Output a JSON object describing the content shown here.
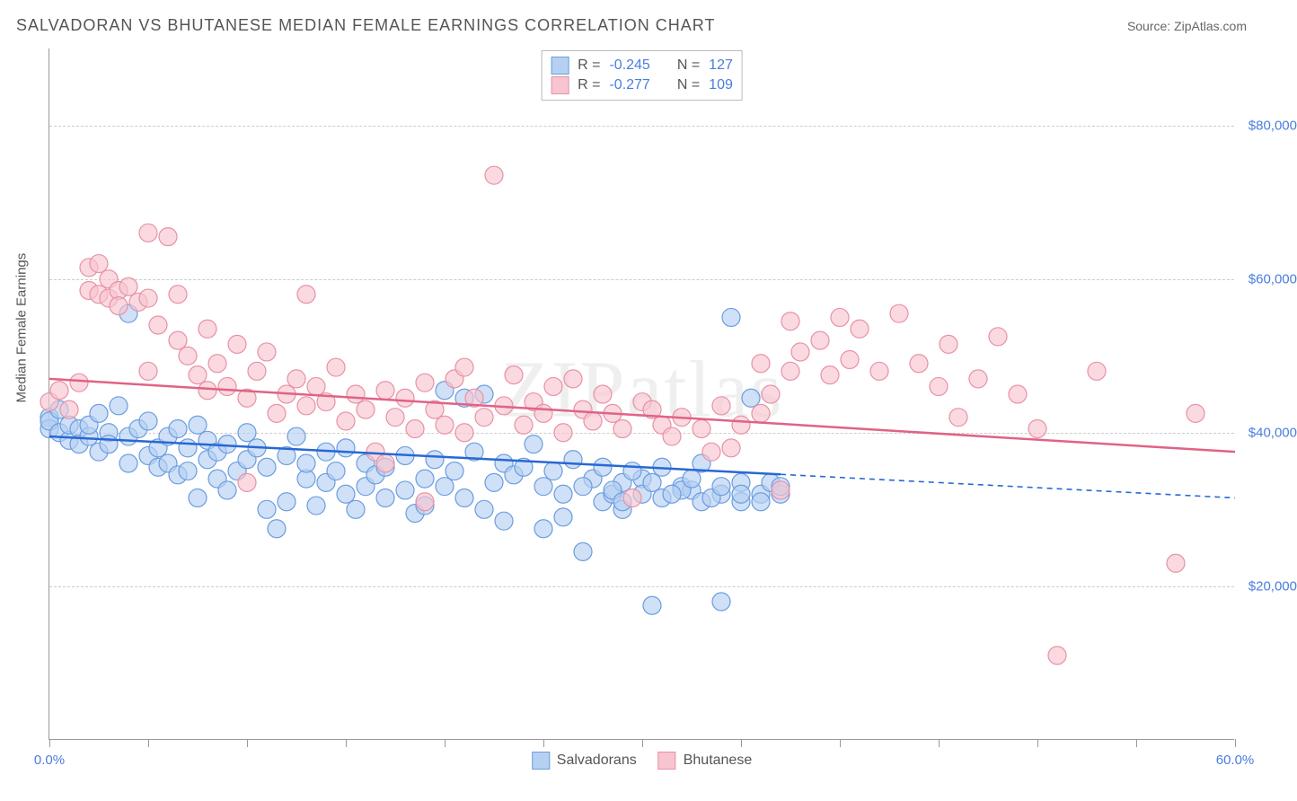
{
  "title": "SALVADORAN VS BHUTANESE MEDIAN FEMALE EARNINGS CORRELATION CHART",
  "source_label": "Source: ZipAtlas.com",
  "watermark": "ZIPatlas",
  "y_axis_title": "Median Female Earnings",
  "chart": {
    "type": "scatter",
    "background_color": "#ffffff",
    "grid_color": "#cccccc",
    "axis_color": "#999999",
    "xlim": [
      0,
      60
    ],
    "ylim": [
      0,
      90000
    ],
    "x_ticks_minor": [
      0,
      5,
      10,
      15,
      20,
      25,
      30,
      35,
      40,
      45,
      50,
      55,
      60
    ],
    "x_tick_labels": [
      {
        "pos": 0,
        "label": "0.0%"
      },
      {
        "pos": 60,
        "label": "60.0%"
      }
    ],
    "y_gridlines": [
      20000,
      40000,
      60000,
      80000
    ],
    "y_tick_labels": [
      "$20,000",
      "$40,000",
      "$60,000",
      "$80,000"
    ],
    "tick_label_color": "#4a7de0",
    "series": [
      {
        "name": "Salvadorans",
        "marker_fill": "#b6d0f2",
        "marker_stroke": "#6a9de0",
        "marker_opacity": 0.65,
        "marker_radius": 10,
        "trend_color": "#2868d4",
        "trend_line_width": 2.5,
        "trend_y_start": 39500,
        "trend_y_end": 31500,
        "trend_solid_until_x": 37,
        "stats": {
          "R": "-0.245",
          "N": "127"
        },
        "points": [
          [
            0,
            42000
          ],
          [
            0,
            40500
          ],
          [
            0,
            41500
          ],
          [
            0.5,
            40000
          ],
          [
            0.5,
            43000
          ],
          [
            1,
            39000
          ],
          [
            1,
            41000
          ],
          [
            1.5,
            40500
          ],
          [
            1.5,
            38500
          ],
          [
            2,
            39500
          ],
          [
            2,
            41000
          ],
          [
            2.5,
            42500
          ],
          [
            2.5,
            37500
          ],
          [
            3,
            40000
          ],
          [
            3,
            38500
          ],
          [
            3.5,
            43500
          ],
          [
            4,
            55500
          ],
          [
            4,
            36000
          ],
          [
            4,
            39500
          ],
          [
            4.5,
            40500
          ],
          [
            5,
            41500
          ],
          [
            5,
            37000
          ],
          [
            5.5,
            38000
          ],
          [
            5.5,
            35500
          ],
          [
            6,
            39500
          ],
          [
            6,
            36000
          ],
          [
            6.5,
            40500
          ],
          [
            6.5,
            34500
          ],
          [
            7,
            38000
          ],
          [
            7,
            35000
          ],
          [
            7.5,
            41000
          ],
          [
            7.5,
            31500
          ],
          [
            8,
            36500
          ],
          [
            8,
            39000
          ],
          [
            8.5,
            37500
          ],
          [
            8.5,
            34000
          ],
          [
            9,
            38500
          ],
          [
            9,
            32500
          ],
          [
            9.5,
            35000
          ],
          [
            10,
            40000
          ],
          [
            10,
            36500
          ],
          [
            10.5,
            38000
          ],
          [
            11,
            30000
          ],
          [
            11,
            35500
          ],
          [
            11.5,
            27500
          ],
          [
            12,
            37000
          ],
          [
            12,
            31000
          ],
          [
            12.5,
            39500
          ],
          [
            13,
            34000
          ],
          [
            13,
            36000
          ],
          [
            13.5,
            30500
          ],
          [
            14,
            37500
          ],
          [
            14,
            33500
          ],
          [
            14.5,
            35000
          ],
          [
            15,
            32000
          ],
          [
            15,
            38000
          ],
          [
            15.5,
            30000
          ],
          [
            16,
            36000
          ],
          [
            16,
            33000
          ],
          [
            16.5,
            34500
          ],
          [
            17,
            31500
          ],
          [
            17,
            35500
          ],
          [
            18,
            37000
          ],
          [
            18,
            32500
          ],
          [
            18.5,
            29500
          ],
          [
            19,
            34000
          ],
          [
            19,
            30500
          ],
          [
            19.5,
            36500
          ],
          [
            20,
            45500
          ],
          [
            20,
            33000
          ],
          [
            20.5,
            35000
          ],
          [
            21,
            44500
          ],
          [
            21,
            31500
          ],
          [
            21.5,
            37500
          ],
          [
            22,
            45000
          ],
          [
            22,
            30000
          ],
          [
            22.5,
            33500
          ],
          [
            23,
            36000
          ],
          [
            23,
            28500
          ],
          [
            23.5,
            34500
          ],
          [
            24,
            35500
          ],
          [
            24.5,
            38500
          ],
          [
            25,
            27500
          ],
          [
            25,
            33000
          ],
          [
            25.5,
            35000
          ],
          [
            26,
            32000
          ],
          [
            26,
            29000
          ],
          [
            26.5,
            36500
          ],
          [
            27,
            24500
          ],
          [
            27.5,
            34000
          ],
          [
            28,
            31000
          ],
          [
            28,
            35500
          ],
          [
            28.5,
            32000
          ],
          [
            29,
            33500
          ],
          [
            29,
            30000
          ],
          [
            30,
            34000
          ],
          [
            30,
            32000
          ],
          [
            30.5,
            17500
          ],
          [
            31,
            35500
          ],
          [
            31,
            31500
          ],
          [
            32,
            33000
          ],
          [
            32.5,
            32500
          ],
          [
            33,
            36000
          ],
          [
            33,
            31000
          ],
          [
            34,
            18000
          ],
          [
            34,
            32000
          ],
          [
            34.5,
            55000
          ],
          [
            35,
            33500
          ],
          [
            35,
            31000
          ],
          [
            35.5,
            44500
          ],
          [
            36,
            32000
          ],
          [
            36.5,
            33500
          ],
          [
            37,
            32000
          ],
          [
            32,
            32500
          ],
          [
            33.5,
            31500
          ],
          [
            34,
            33000
          ],
          [
            35,
            32000
          ],
          [
            36,
            31000
          ],
          [
            37,
            33000
          ],
          [
            29.5,
            35000
          ],
          [
            30.5,
            33500
          ],
          [
            31.5,
            32000
          ],
          [
            32.5,
            34000
          ],
          [
            27,
            33000
          ],
          [
            28.5,
            32500
          ],
          [
            29,
            31000
          ]
        ]
      },
      {
        "name": "Bhutanese",
        "marker_fill": "#f7c5d0",
        "marker_stroke": "#e891a5",
        "marker_opacity": 0.65,
        "marker_radius": 10,
        "trend_color": "#e06385",
        "trend_line_width": 2.5,
        "trend_y_start": 47000,
        "trend_y_end": 37500,
        "trend_solid_until_x": 60,
        "stats": {
          "R": "-0.277",
          "N": "109"
        },
        "points": [
          [
            0,
            44000
          ],
          [
            0.5,
            45500
          ],
          [
            1,
            43000
          ],
          [
            1.5,
            46500
          ],
          [
            2,
            61500
          ],
          [
            2,
            58500
          ],
          [
            2.5,
            62000
          ],
          [
            2.5,
            58000
          ],
          [
            3,
            60000
          ],
          [
            3,
            57500
          ],
          [
            3.5,
            58500
          ],
          [
            3.5,
            56500
          ],
          [
            4,
            59000
          ],
          [
            4.5,
            57000
          ],
          [
            5,
            57500
          ],
          [
            5,
            66000
          ],
          [
            5,
            48000
          ],
          [
            5.5,
            54000
          ],
          [
            6,
            65500
          ],
          [
            6.5,
            58000
          ],
          [
            6.5,
            52000
          ],
          [
            7,
            50000
          ],
          [
            7.5,
            47500
          ],
          [
            8,
            53500
          ],
          [
            8,
            45500
          ],
          [
            8.5,
            49000
          ],
          [
            9,
            46000
          ],
          [
            9.5,
            51500
          ],
          [
            10,
            33500
          ],
          [
            10,
            44500
          ],
          [
            10.5,
            48000
          ],
          [
            11,
            50500
          ],
          [
            11.5,
            42500
          ],
          [
            12,
            45000
          ],
          [
            12.5,
            47000
          ],
          [
            13,
            58000
          ],
          [
            13,
            43500
          ],
          [
            13.5,
            46000
          ],
          [
            14,
            44000
          ],
          [
            14.5,
            48500
          ],
          [
            15,
            41500
          ],
          [
            15.5,
            45000
          ],
          [
            16,
            43000
          ],
          [
            16.5,
            37500
          ],
          [
            17,
            36000
          ],
          [
            17,
            45500
          ],
          [
            17.5,
            42000
          ],
          [
            18,
            44500
          ],
          [
            18.5,
            40500
          ],
          [
            19,
            46500
          ],
          [
            19.5,
            43000
          ],
          [
            20,
            41000
          ],
          [
            20.5,
            47000
          ],
          [
            21,
            48500
          ],
          [
            21,
            40000
          ],
          [
            21.5,
            44500
          ],
          [
            22,
            42000
          ],
          [
            22.5,
            73500
          ],
          [
            23,
            43500
          ],
          [
            23.5,
            47500
          ],
          [
            24,
            41000
          ],
          [
            24.5,
            44000
          ],
          [
            25,
            42500
          ],
          [
            25.5,
            46000
          ],
          [
            26,
            40000
          ],
          [
            26.5,
            47000
          ],
          [
            27,
            43000
          ],
          [
            27.5,
            41500
          ],
          [
            28,
            45000
          ],
          [
            28.5,
            42500
          ],
          [
            29,
            40500
          ],
          [
            29.5,
            31500
          ],
          [
            30,
            44000
          ],
          [
            30.5,
            43000
          ],
          [
            31,
            41000
          ],
          [
            31.5,
            39500
          ],
          [
            32,
            42000
          ],
          [
            33,
            40500
          ],
          [
            33.5,
            37500
          ],
          [
            34,
            43500
          ],
          [
            34.5,
            38000
          ],
          [
            35,
            41000
          ],
          [
            36,
            42500
          ],
          [
            36,
            49000
          ],
          [
            36.5,
            45000
          ],
          [
            37,
            32500
          ],
          [
            37.5,
            48000
          ],
          [
            37.5,
            54500
          ],
          [
            38,
            50500
          ],
          [
            39,
            52000
          ],
          [
            39.5,
            47500
          ],
          [
            40,
            55000
          ],
          [
            40.5,
            49500
          ],
          [
            41,
            53500
          ],
          [
            42,
            48000
          ],
          [
            43,
            55500
          ],
          [
            44,
            49000
          ],
          [
            45,
            46000
          ],
          [
            45.5,
            51500
          ],
          [
            46,
            42000
          ],
          [
            47,
            47000
          ],
          [
            48,
            52500
          ],
          [
            49,
            45000
          ],
          [
            50,
            40500
          ],
          [
            51,
            11000
          ],
          [
            53,
            48000
          ],
          [
            57,
            23000
          ],
          [
            58,
            42500
          ],
          [
            19,
            31000
          ]
        ]
      }
    ]
  },
  "stats_box_labels": {
    "R": "R =",
    "N": "N ="
  },
  "legend": [
    {
      "label": "Salvadorans",
      "fill": "#b6d0f2",
      "stroke": "#6a9de0"
    },
    {
      "label": "Bhutanese",
      "fill": "#f7c5d0",
      "stroke": "#e891a5"
    }
  ]
}
